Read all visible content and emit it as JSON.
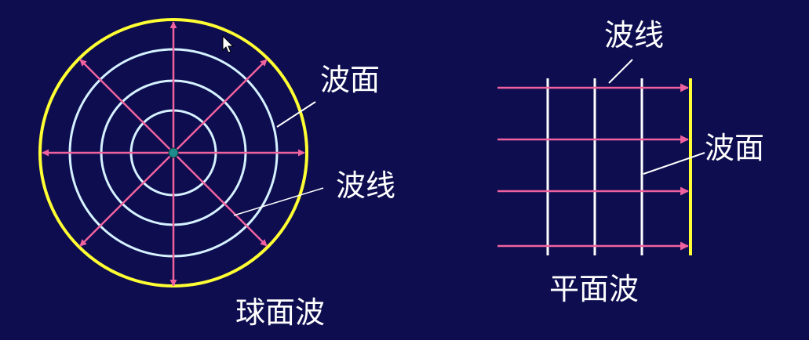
{
  "spherical_wave": {
    "wavefront_label": "波面",
    "ray_label": "波线",
    "caption": "球面波",
    "ring_count": 3,
    "ray_count": 8
  },
  "plane_wave": {
    "ray_label": "波线",
    "wavefront_label": "波面",
    "caption": "平面波",
    "wavefront_line_count": 3,
    "ray_count": 4
  },
  "colors": {
    "background": "#0d0d50",
    "ray": "#f0629e",
    "wavefront_outer": "#ffff33",
    "wavefront_inner": "#d6f2ff",
    "plane_line": "#ffffff",
    "source": "#1e8c8c"
  }
}
